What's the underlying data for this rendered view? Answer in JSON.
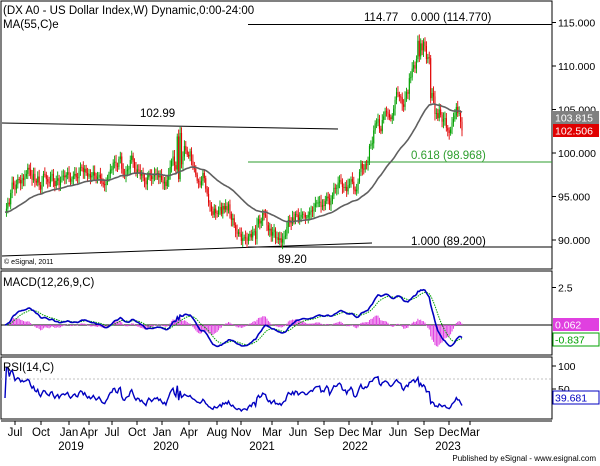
{
  "header": {
    "title": "(DX A0 - US Dollar Index,W) Dynamic,0:00-24:00",
    "ma_label": "MA(55,C)e",
    "copyright": "© eSignal, 2011",
    "footer": "Published by eSignal - www.esignal.com"
  },
  "colors": {
    "up": "#00a000",
    "down": "#e00000",
    "ma": "#606060",
    "fib": "#2e9e2e",
    "macd": "#0000c0",
    "signal": "#00a000",
    "hist": "#e040e0",
    "rsi": "#0000c0",
    "price_badge": "#e00000",
    "ma_badge": "#808080"
  },
  "chart_data": [
    {
      "type": "candlestick",
      "title": "(DX A0 - US Dollar Index,W) Dynamic,0:00-24:00",
      "y_axis": {
        "ticks": [
          90,
          95,
          100,
          105,
          110,
          115
        ],
        "tick_labels": [
          "90.000",
          "95.000",
          "100.000",
          "105.000",
          "110.000",
          "115.000"
        ],
        "range": [
          88.5,
          116.5
        ]
      },
      "x_axis": {
        "months": [
          "Jul",
          "Oct",
          "Jan",
          "Apr",
          "Jul",
          "Oct",
          "Jan",
          "Apr",
          "Aug",
          "Nov",
          "Mar",
          "Jun",
          "Sep",
          "Dec",
          "Mar",
          "Jun",
          "Sep",
          "Dec",
          "Mar"
        ],
        "years": [
          "2019",
          "2020",
          "2021",
          "2022",
          "2023"
        ]
      },
      "series": [
        {
          "name": "DX A0",
          "close": [
            93.2,
            93.6,
            94.3,
            94.1,
            95.4,
            96.6,
            96.3,
            95.8,
            96.4,
            97.0,
            96.9,
            96.5,
            97.1,
            96.9,
            97.3,
            97.6,
            98.3,
            98.1,
            97.4,
            96.9,
            97.6,
            96.8,
            96.6,
            97.3,
            96.3,
            95.8,
            96.7,
            97.6,
            97.5,
            97.0,
            96.7,
            96.5,
            97.4,
            97.6,
            96.8,
            96.2,
            96.8,
            97.1,
            96.3,
            96.9,
            97.3,
            97.4,
            97.2,
            97.5,
            97.8,
            97.1,
            96.7,
            97.0,
            97.4,
            97.6,
            97.2,
            97.1,
            97.9,
            98.4,
            98.3,
            97.8,
            98.2,
            97.7,
            97.3,
            97.6,
            97.2,
            97.4,
            97.8,
            97.4,
            97.0,
            97.2,
            97.5,
            97.1,
            96.6,
            96.4,
            96.3,
            96.7,
            97.0,
            97.6,
            98.1,
            98.1,
            98.9,
            99.0,
            98.5,
            98.4,
            99.3,
            99.6,
            98.2,
            97.5,
            97.4,
            97.9,
            98.1,
            98.2,
            99.2,
            99.7,
            99.0,
            98.2,
            97.7,
            98.1,
            98.0,
            97.4,
            97.6,
            97.1,
            96.8,
            96.4,
            97.2,
            97.7,
            97.4,
            97.0,
            97.3,
            97.6,
            97.5,
            97.7,
            97.2,
            97.4,
            96.9,
            96.5,
            96.7,
            96.2,
            96.9,
            97.5,
            98.4,
            99.1,
            99.6,
            98.6,
            98.1,
            101.9,
            97.0,
            102.3,
            98.7,
            99.6,
            100.8,
            100.3,
            99.8,
            99.6,
            100.2,
            99.1,
            98.5,
            98.2,
            97.5,
            96.8,
            96.7,
            96.3,
            96.8,
            97.7,
            97.1,
            95.9,
            95.3,
            94.3,
            94.0,
            93.3,
            92.9,
            93.6,
            93.1,
            93.0,
            93.4,
            93.8,
            93.0,
            93.9,
            93.5,
            93.9,
            93.4,
            94.1,
            93.0,
            92.3,
            92.5,
            91.7,
            91.1,
            90.7,
            90.9,
            90.7,
            89.9,
            90.2,
            90.3,
            90.2,
            89.9,
            90.4,
            90.7,
            90.3,
            90.9,
            91.0,
            90.1,
            91.8,
            92.4,
            91.9,
            92.2,
            93.1,
            92.9,
            92.8,
            91.7,
            91.1,
            91.3,
            90.5,
            90.9,
            91.2,
            90.2,
            90.3,
            90.0,
            90.2,
            89.7,
            90.1,
            90.4,
            90.5,
            91.5,
            92.3,
            92.1,
            91.9,
            92.6,
            92.1,
            93.0,
            92.9,
            92.3,
            92.6,
            92.9,
            93.0,
            92.9,
            92.6,
            92.6,
            92.9,
            93.2,
            93.4,
            93.3,
            93.8,
            94.2,
            94.3,
            94.3,
            94.4,
            93.8,
            94.0,
            93.9,
            94.5,
            95.0,
            94.8,
            94.0,
            94.5,
            95.1,
            96.0,
            95.9,
            96.0,
            96.6,
            96.9,
            96.7,
            96.1,
            96.0,
            96.1,
            95.6,
            96.3,
            96.4,
            97.0,
            96.7,
            95.8,
            95.6,
            95.8,
            96.7,
            97.8,
            98.8,
            98.2,
            98.1,
            98.7,
            98.6,
            99.1,
            100.8,
            101.0,
            101.1,
            102.6,
            103.4,
            103.5,
            103.9,
            102.8,
            102.5,
            103.8,
            104.2,
            104.8,
            104.7,
            104.5,
            104.1,
            103.9,
            104.3,
            105.1,
            106.1,
            107.0,
            106.7,
            106.5,
            106.4,
            105.6,
            105.3,
            106.3,
            107.0,
            106.8,
            108.6,
            108.7,
            109.7,
            110.1,
            109.7,
            110.8,
            112.9,
            111.1,
            112.6,
            111.8,
            112.8,
            112.3,
            110.8,
            111.0,
            110.9,
            106.3,
            106.9,
            106.5,
            104.5,
            104.6,
            104.0,
            105.0,
            104.4,
            103.6,
            103.9,
            104.0,
            102.9,
            102.6,
            102.3,
            102.7,
            103.5,
            103.9,
            104.3,
            105.3,
            104.6,
            104.6,
            103.6,
            102.6
          ],
          "last": 102.506
        },
        {
          "name": "MA(55,C)e",
          "last": 103.815
        }
      ],
      "annotations": [
        {
          "text": "102.99",
          "value": 102.99
        },
        {
          "text": "114.77",
          "value": 114.77
        },
        {
          "text": "89.20",
          "value": 89.2
        },
        {
          "text": "0.000 (114.770)",
          "value": 114.77
        },
        {
          "text": "0.618 (98.968)",
          "value": 98.968
        },
        {
          "text": "1.000 (89.200)",
          "value": 89.2
        }
      ]
    },
    {
      "type": "line",
      "title": "MACD(12,26,9,C)",
      "y_axis": {
        "ticks": [
          2.5
        ],
        "tick_labels": [
          "2.5"
        ]
      },
      "series": [
        {
          "name": "MACD",
          "last": -0.837
        },
        {
          "name": "Signal",
          "last": 0.062
        }
      ]
    },
    {
      "type": "line",
      "title": "RSI(14,C)",
      "y_axis": {
        "ticks": [
          100,
          50
        ],
        "tick_labels": [
          "100",
          "50"
        ],
        "range": [
          0,
          100
        ]
      },
      "series": [
        {
          "name": "RSI",
          "last": 39.681
        }
      ]
    }
  ]
}
